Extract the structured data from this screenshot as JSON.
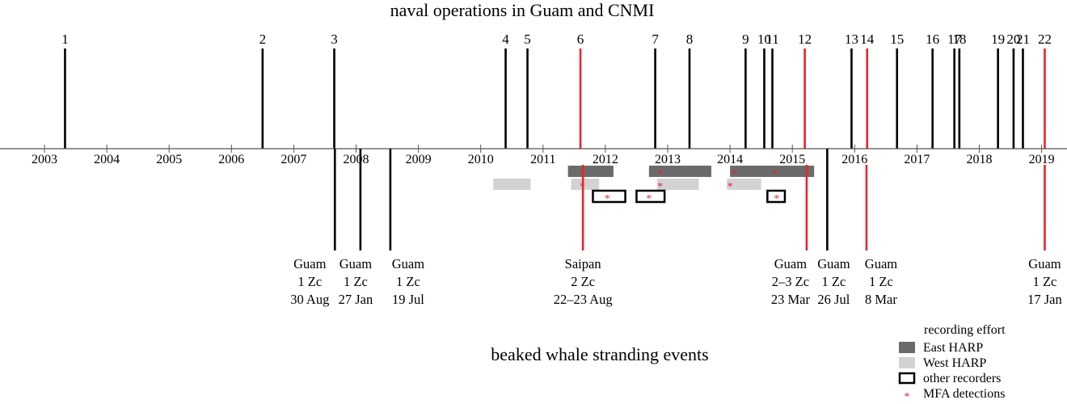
{
  "title_top": "naval operations in Guam and CNMI",
  "title_bottom": "beaked whale stranding events",
  "colors": {
    "axis": "#555555",
    "black_event": "#000000",
    "red_event": "#e8262a",
    "east_harp": "#6b6b6b",
    "west_harp": "#d3d3d3",
    "other_recorders": "#000000",
    "mfa": "#e8262a"
  },
  "years": [
    "2003",
    "2004",
    "2005",
    "2006",
    "2007",
    "2008",
    "2009",
    "2010",
    "2011",
    "2012",
    "2013",
    "2014",
    "2015",
    "2016",
    "2017",
    "2018",
    "2019"
  ],
  "naval_operations": [
    {
      "label": "1",
      "date": 2003.33,
      "highlight": false
    },
    {
      "label": "2",
      "date": 2006.5,
      "highlight": false
    },
    {
      "label": "3",
      "date": 2007.65,
      "highlight": false
    },
    {
      "label": "4",
      "date": 2010.4,
      "highlight": false
    },
    {
      "label": "5",
      "date": 2010.75,
      "highlight": false
    },
    {
      "label": "6",
      "date": 2011.6,
      "highlight": true
    },
    {
      "label": "7",
      "date": 2012.8,
      "highlight": false
    },
    {
      "label": "8",
      "date": 2013.35,
      "highlight": false
    },
    {
      "label": "9",
      "date": 2014.25,
      "highlight": false
    },
    {
      "label": "10",
      "date": 2014.55,
      "highlight": false
    },
    {
      "label": "11",
      "date": 2014.68,
      "highlight": false
    },
    {
      "label": "12",
      "date": 2015.2,
      "highlight": true
    },
    {
      "label": "13",
      "date": 2015.95,
      "highlight": false
    },
    {
      "label": "14",
      "date": 2016.2,
      "highlight": true
    },
    {
      "label": "15",
      "date": 2016.68,
      "highlight": false
    },
    {
      "label": "16",
      "date": 2017.25,
      "highlight": false
    },
    {
      "label": "17",
      "date": 2017.6,
      "highlight": false
    },
    {
      "label": "18",
      "date": 2017.68,
      "highlight": false
    },
    {
      "label": "19",
      "date": 2018.3,
      "highlight": false
    },
    {
      "label": "20",
      "date": 2018.55,
      "highlight": false
    },
    {
      "label": "21",
      "date": 2018.7,
      "highlight": false
    },
    {
      "label": "22",
      "date": 2019.05,
      "highlight": true
    }
  ],
  "stranding_events": [
    {
      "location": "Guam",
      "count": "1 Zc",
      "date": "30 Aug",
      "pos": 2007.66,
      "highlight": false
    },
    {
      "location": "Guam",
      "count": "1 Zc",
      "date": "27 Jan",
      "pos": 2008.07,
      "highlight": false
    },
    {
      "location": "Guam",
      "count": "1 Zc",
      "date": "19 Jul",
      "pos": 2008.55,
      "highlight": false
    },
    {
      "location": "Saipan",
      "count": "2 Zc",
      "date": "22–23 Aug",
      "pos": 2011.64,
      "highlight": true
    },
    {
      "location": "Guam",
      "count": "2–3 Zc",
      "date": "23 Mar",
      "pos": 2015.23,
      "highlight": true
    },
    {
      "location": "Guam",
      "count": "1 Zc",
      "date": "26 Jul",
      "pos": 2015.56,
      "highlight": false
    },
    {
      "location": "Guam",
      "count": "1 Zc",
      "date": "8 Mar",
      "pos": 2016.19,
      "highlight": true
    },
    {
      "location": "Guam",
      "count": "1 Zc",
      "date": "17 Jan",
      "pos": 2019.05,
      "highlight": true
    }
  ],
  "recording_effort": {
    "east_harp": [
      [
        2011.4,
        2012.13
      ],
      [
        2012.7,
        2013.7
      ],
      [
        2014.0,
        2015.35
      ]
    ],
    "west_harp": [
      [
        2010.2,
        2010.8
      ],
      [
        2011.45,
        2011.9
      ],
      [
        2012.83,
        2013.5
      ],
      [
        2013.95,
        2014.5
      ]
    ],
    "other_recorders": [
      [
        2011.8,
        2012.32
      ],
      [
        2012.5,
        2012.95
      ],
      [
        2014.6,
        2014.88
      ]
    ],
    "mfa_detections": [
      {
        "date": 2011.63,
        "row": "east"
      },
      {
        "date": 2011.63,
        "row": "west"
      },
      {
        "date": 2012.03,
        "row": "other"
      },
      {
        "date": 2012.7,
        "row": "other"
      },
      {
        "date": 2012.88,
        "row": "east"
      },
      {
        "date": 2012.88,
        "row": "west"
      },
      {
        "date": 2014.07,
        "row": "east"
      },
      {
        "date": 2014.0,
        "row": "west"
      },
      {
        "date": 2014.72,
        "row": "east"
      },
      {
        "date": 2014.75,
        "row": "other"
      }
    ]
  },
  "legend": {
    "title": "recording effort",
    "items": [
      {
        "label": "East HARP",
        "kind": "east"
      },
      {
        "label": "West HARP",
        "kind": "west"
      },
      {
        "label": "other recorders",
        "kind": "other"
      },
      {
        "label": "MFA detections",
        "kind": "mfa"
      }
    ]
  }
}
